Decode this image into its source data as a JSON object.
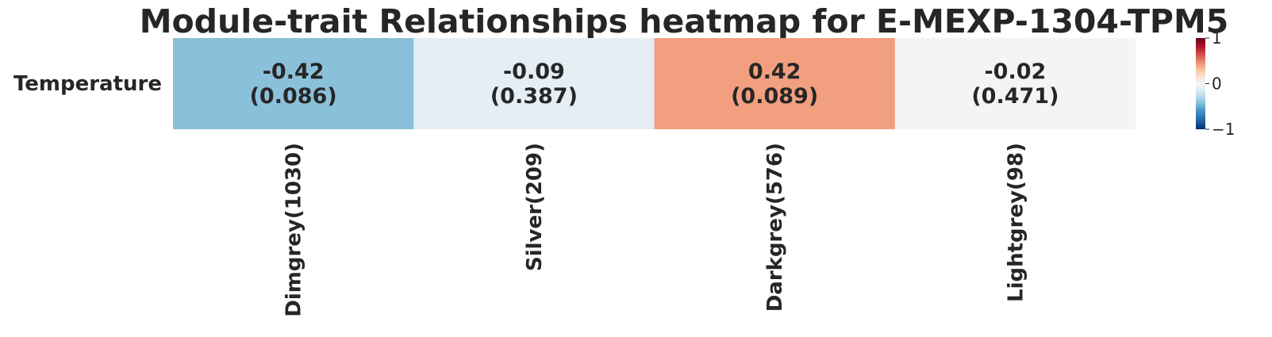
{
  "chart_data": {
    "type": "heatmap",
    "title": "Module-trait Relationships heatmap for E-MEXP-1304-TPM5",
    "rows": [
      "Temperature"
    ],
    "columns": [
      "Dimgrey(1030)",
      "Silver(209)",
      "Darkgrey(576)",
      "Lightgrey(98)"
    ],
    "values": [
      [
        -0.42,
        -0.09,
        0.42,
        -0.02
      ]
    ],
    "pvalues": [
      [
        "(0.086)",
        "(0.387)",
        "(0.089)",
        "(0.471)"
      ]
    ],
    "value_labels": [
      [
        "-0.42",
        "-0.09",
        "0.42",
        "-0.02"
      ]
    ],
    "colorbar": {
      "range": [
        -1,
        1
      ],
      "ticks": [
        1,
        0,
        -1
      ],
      "tick_labels": [
        "1",
        "0",
        "−1"
      ],
      "colormap": "RdBu_r"
    },
    "colors": {
      "cells": [
        "#8bc0da",
        "#e4eef4",
        "#f29f7f",
        "#f3f4f5"
      ]
    }
  }
}
